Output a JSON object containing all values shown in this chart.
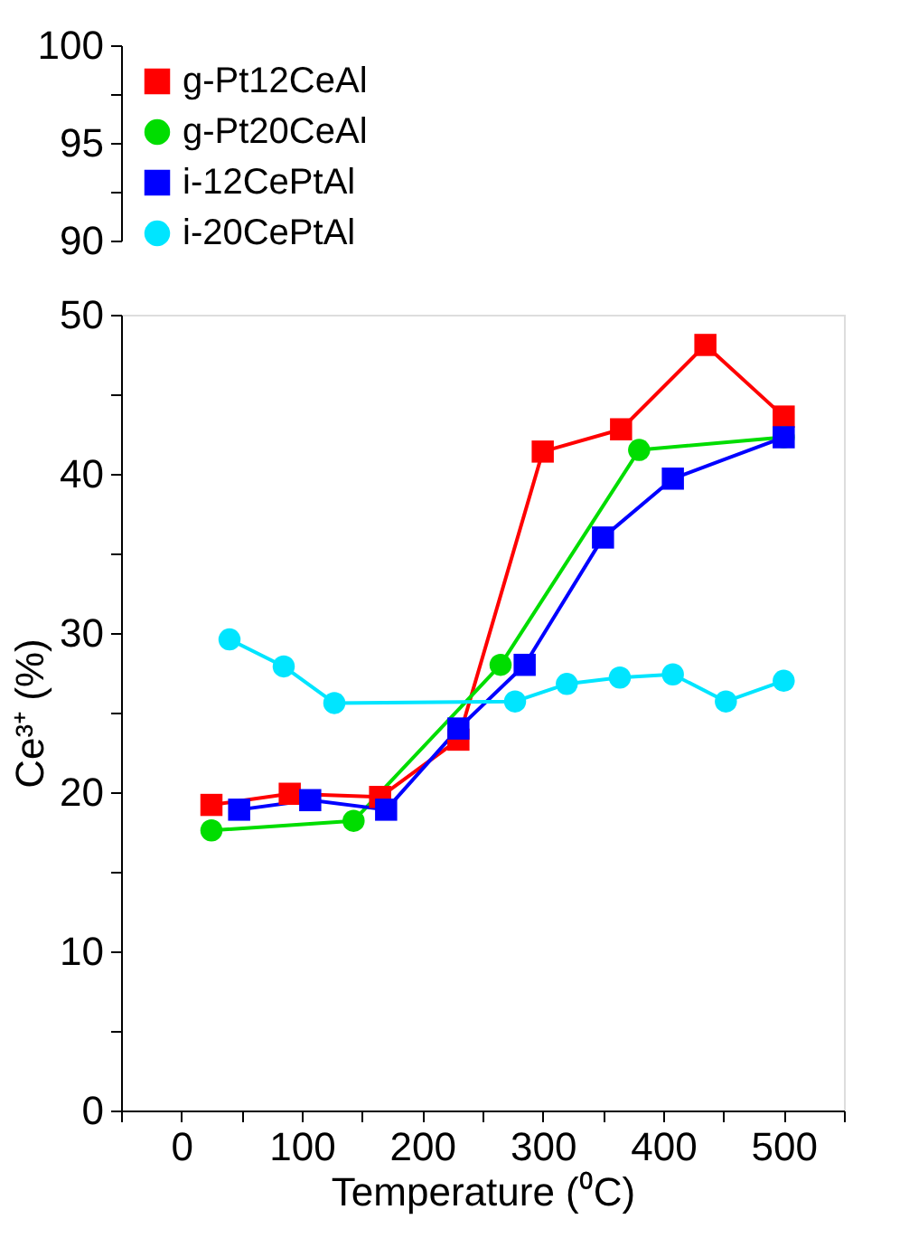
{
  "chart_data": {
    "type": "line",
    "xlabel": "Temperature (⁰C)",
    "ylabel": "Ce³⁺ (%)",
    "xlim": [
      -50,
      550
    ],
    "ylim": [
      0,
      50
    ],
    "annotations": [
      "90",
      "95",
      "100"
    ],
    "xticks": [
      {
        "value": -50,
        "label": null
      },
      0,
      {
        "value": 50,
        "label": null
      },
      100,
      {
        "value": 150,
        "label": null
      },
      200,
      {
        "value": 250,
        "label": null
      },
      300,
      {
        "value": 350,
        "label": null
      },
      400,
      {
        "value": 450,
        "label": null
      },
      500,
      {
        "value": 550,
        "label": null
      }
    ],
    "yticks": [
      0,
      {
        "value": 5,
        "label": null
      },
      10,
      {
        "value": 15,
        "label": null
      },
      20,
      {
        "value": 25,
        "label": null
      },
      30,
      {
        "value": 35,
        "label": null
      },
      40,
      {
        "value": 45,
        "label": null
      },
      50
    ],
    "legend": "top left",
    "line_style": "solid",
    "series": [
      {
        "name": "g-Pt12CeAl",
        "color": "#ff0000",
        "marker": "square",
        "x": [
          25,
          90,
          165,
          230,
          300,
          365,
          435,
          500
        ],
        "values": [
          19.2,
          19.9,
          19.7,
          23.3,
          41.4,
          42.8,
          48.1,
          43.6
        ]
      },
      {
        "name": "g-Pt20CeAl",
        "color": "#00dd00",
        "marker": "circle",
        "x": [
          25,
          143,
          265,
          380,
          500
        ],
        "values": [
          17.6,
          18.2,
          28.0,
          41.5,
          42.3
        ]
      },
      {
        "name": "i-12CePtAl",
        "color": "#0000ff",
        "marker": "square",
        "x": [
          48,
          107,
          170,
          230,
          285,
          350,
          408,
          500
        ],
        "values": [
          18.9,
          19.5,
          18.9,
          24.0,
          28.0,
          36.0,
          39.7,
          42.3
        ]
      },
      {
        "name": "i-20CePtAl",
        "color": "#00e5ff",
        "marker": "circle",
        "x": [
          40,
          85,
          127,
          277,
          320,
          364,
          408,
          452,
          500
        ],
        "values": [
          29.6,
          27.9,
          25.6,
          25.7,
          26.8,
          27.2,
          27.4,
          25.7,
          27.0
        ]
      }
    ]
  }
}
